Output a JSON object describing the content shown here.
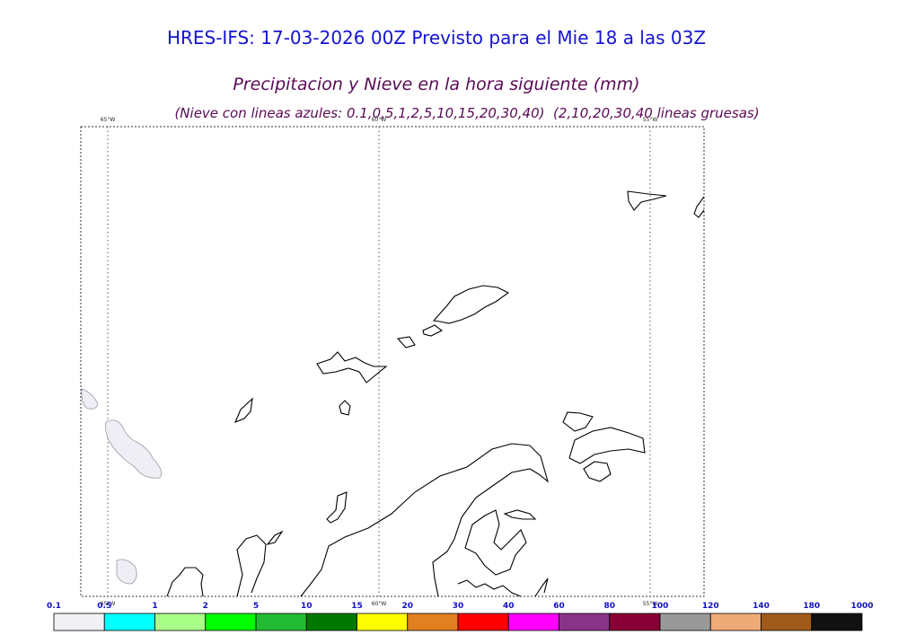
{
  "header": {
    "title": "HRES-IFS: 17-03-2026 00Z Previsto para el Mie 18 a las 03Z",
    "subtitle": "Precipitacion y Nieve en la hora siguiente (mm)",
    "note": "(Nieve con lineas azules: 0.1,0,5,1,2,5,10,15,20,30,40)  (2,10,20,30,40 lineas gruesas)"
  },
  "map": {
    "meridians": [
      "65°W",
      "60°W",
      "55°W"
    ]
  },
  "legend": {
    "labels": [
      0.1,
      0.5,
      1,
      2,
      5,
      10,
      15,
      20,
      30,
      40,
      60,
      80,
      100,
      120,
      140,
      180,
      1000
    ],
    "colors": [
      "#f0f0f5",
      "#00ffff",
      "#aaff88",
      "#00ff00",
      "#22bb33",
      "#007700",
      "#ffff00",
      "#e08020",
      "#ff0000",
      "#ff00ff",
      "#883388",
      "#880033",
      "#999999",
      "#eeaa77",
      "#a05a1a",
      "#111111"
    ]
  }
}
